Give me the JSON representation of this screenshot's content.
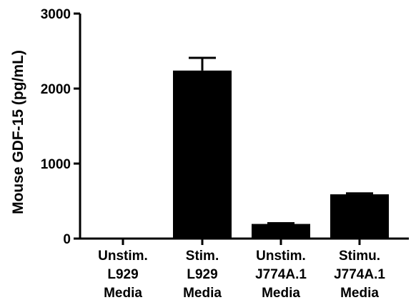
{
  "chart_data": {
    "type": "bar",
    "ylabel": "Mouse GDF-15 (pg/mL)",
    "xlabel": "",
    "ylim": [
      0,
      3000
    ],
    "yticks": [
      0,
      1000,
      2000,
      3000
    ],
    "grid": false,
    "categories": [
      [
        "Unstim.",
        "L929",
        "Media"
      ],
      [
        "Stim.",
        "L929",
        "Media"
      ],
      [
        "Unstim.",
        "J774A.1",
        "Media"
      ],
      [
        "Stimu.",
        "J774A.1",
        "Media"
      ]
    ],
    "series": [
      {
        "values": [
          0,
          2240,
          195,
          590
        ],
        "error": [
          0,
          170,
          10,
          12
        ],
        "color": "#000000"
      }
    ]
  }
}
